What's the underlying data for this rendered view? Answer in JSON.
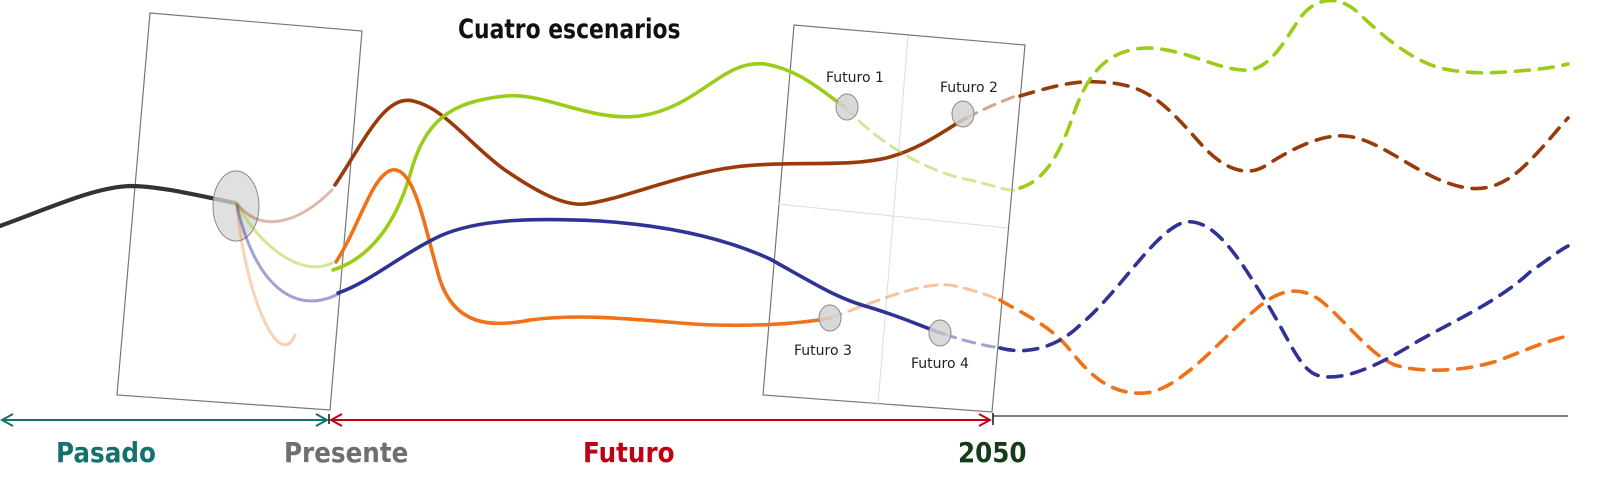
{
  "title": "Cuatro escenarios",
  "timeline": {
    "past": "Pasado",
    "present": "Presente",
    "future": "Futuro",
    "year": "2050"
  },
  "futures": [
    "Futuro 1",
    "Futuro 2",
    "Futuro 3",
    "Futuro 4"
  ],
  "colors": {
    "past": "#137270",
    "present": "#6f6f6f",
    "future": "#c00012",
    "year": "#153c18",
    "history_line": "#333333",
    "scenario_green": "#9bcc18",
    "scenario_brown": "#983a09",
    "scenario_orange": "#f07118",
    "scenario_blue": "#2f3393"
  }
}
